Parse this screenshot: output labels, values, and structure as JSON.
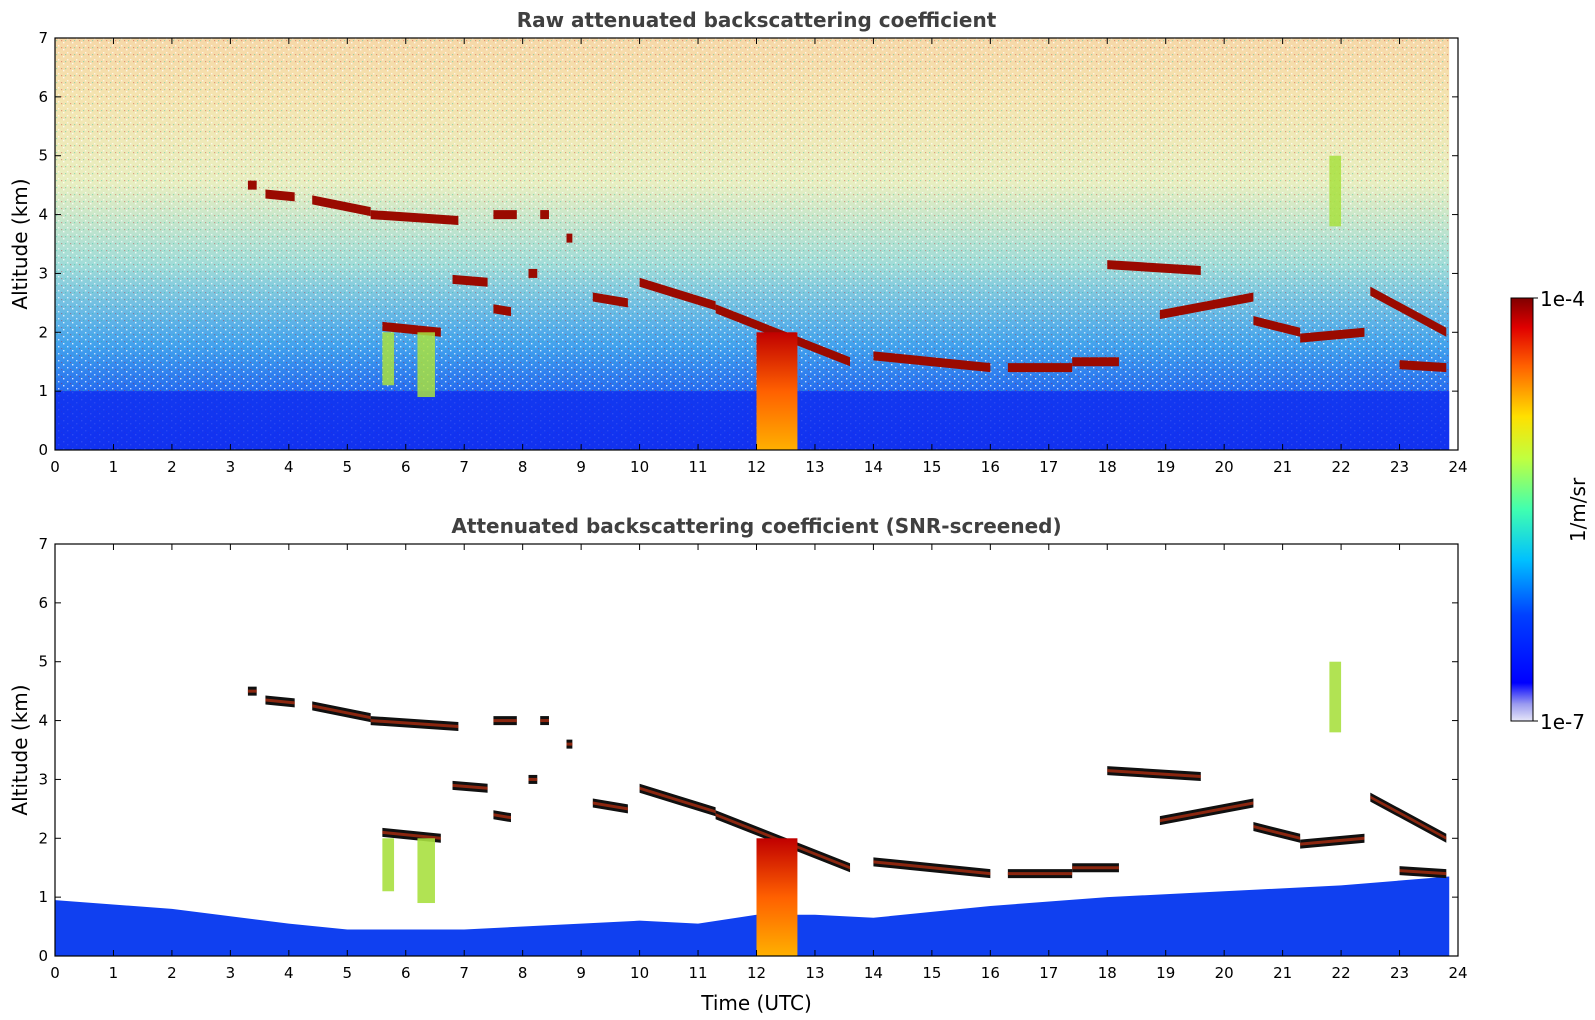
{
  "chart_data": [
    {
      "type": "heatmap",
      "title": "Raw attenuated backscattering coefficient",
      "xlabel": "",
      "ylabel": "Altitude (km)",
      "xlim": [
        0,
        24
      ],
      "ylim": [
        0,
        7
      ],
      "xticks": [
        "0",
        "1",
        "2",
        "3",
        "4",
        "5",
        "6",
        "7",
        "8",
        "9",
        "10",
        "11",
        "12",
        "13",
        "14",
        "15",
        "16",
        "17",
        "18",
        "19",
        "20",
        "21",
        "22",
        "23",
        "24"
      ],
      "yticks": [
        "0",
        "1",
        "2",
        "3",
        "4",
        "5",
        "6",
        "7"
      ],
      "data_end_hour": 23.85,
      "grid": false,
      "layers": [
        {
          "kind": "boundary-layer",
          "x": [
            0,
            23.85
          ],
          "y_top_km": 1.0
        },
        {
          "kind": "cloud",
          "x": [
            3.3,
            3.45
          ],
          "y": [
            4.5,
            4.5
          ]
        },
        {
          "kind": "cloud",
          "x": [
            3.6,
            4.1
          ],
          "y": [
            4.35,
            4.3
          ]
        },
        {
          "kind": "cloud",
          "x": [
            4.4,
            5.4
          ],
          "y": [
            4.25,
            4.05
          ]
        },
        {
          "kind": "cloud",
          "x": [
            5.4,
            6.9
          ],
          "y": [
            4.0,
            3.9
          ]
        },
        {
          "kind": "cloud",
          "x": [
            7.5,
            7.9
          ],
          "y": [
            4.0,
            4.0
          ]
        },
        {
          "kind": "cloud",
          "x": [
            8.3,
            8.45
          ],
          "y": [
            4.0,
            4.0
          ]
        },
        {
          "kind": "cloud",
          "x": [
            5.6,
            6.6
          ],
          "y": [
            2.1,
            2.0
          ]
        },
        {
          "kind": "cloud",
          "x": [
            6.8,
            7.4
          ],
          "y": [
            2.9,
            2.85
          ]
        },
        {
          "kind": "cloud",
          "x": [
            7.5,
            7.8
          ],
          "y": [
            2.4,
            2.35
          ]
        },
        {
          "kind": "cloud",
          "x": [
            8.1,
            8.25
          ],
          "y": [
            3.0,
            3.0
          ]
        },
        {
          "kind": "cloud",
          "x": [
            8.75,
            8.85
          ],
          "y": [
            3.6,
            3.6
          ]
        },
        {
          "kind": "cloud",
          "x": [
            9.2,
            9.8
          ],
          "y": [
            2.6,
            2.5
          ]
        },
        {
          "kind": "cloud",
          "x": [
            10.0,
            11.3
          ],
          "y": [
            2.85,
            2.45
          ]
        },
        {
          "kind": "cloud",
          "x": [
            11.3,
            13.6
          ],
          "y": [
            2.4,
            1.5
          ]
        },
        {
          "kind": "cloud",
          "x": [
            14.0,
            16.0
          ],
          "y": [
            1.6,
            1.4
          ]
        },
        {
          "kind": "cloud",
          "x": [
            16.3,
            17.4
          ],
          "y": [
            1.4,
            1.4
          ]
        },
        {
          "kind": "cloud",
          "x": [
            17.4,
            18.2
          ],
          "y": [
            1.5,
            1.5
          ]
        },
        {
          "kind": "cloud",
          "x": [
            18.0,
            19.6
          ],
          "y": [
            3.15,
            3.05
          ]
        },
        {
          "kind": "cloud",
          "x": [
            18.9,
            20.5
          ],
          "y": [
            2.3,
            2.6
          ]
        },
        {
          "kind": "cloud",
          "x": [
            20.5,
            21.3
          ],
          "y": [
            2.2,
            2.0
          ]
        },
        {
          "kind": "cloud",
          "x": [
            21.3,
            22.4
          ],
          "y": [
            1.9,
            2.0
          ]
        },
        {
          "kind": "cloud",
          "x": [
            22.5,
            23.8
          ],
          "y": [
            2.7,
            2.0
          ]
        },
        {
          "kind": "cloud",
          "x": [
            23.0,
            23.8
          ],
          "y": [
            1.45,
            1.4
          ]
        },
        {
          "kind": "precip",
          "x": [
            12.0,
            12.7
          ],
          "y": [
            0,
            2.0
          ]
        },
        {
          "kind": "virga",
          "x": [
            5.6,
            5.8
          ],
          "y": [
            1.1,
            2.0
          ]
        },
        {
          "kind": "virga",
          "x": [
            6.2,
            6.5
          ],
          "y": [
            0.9,
            2.0
          ]
        },
        {
          "kind": "virga",
          "x": [
            21.8,
            22.0
          ],
          "y": [
            3.8,
            5.0
          ]
        }
      ]
    },
    {
      "type": "heatmap",
      "title": "Attenuated backscattering coefficient (SNR-screened)",
      "xlabel": "Time (UTC)",
      "ylabel": "Altitude (km)",
      "xlim": [
        0,
        24
      ],
      "ylim": [
        0,
        7
      ],
      "xticks": [
        "0",
        "1",
        "2",
        "3",
        "4",
        "5",
        "6",
        "7",
        "8",
        "9",
        "10",
        "11",
        "12",
        "13",
        "14",
        "15",
        "16",
        "17",
        "18",
        "19",
        "20",
        "21",
        "22",
        "23",
        "24"
      ],
      "yticks": [
        "0",
        "1",
        "2",
        "3",
        "4",
        "5",
        "6",
        "7"
      ],
      "data_end_hour": 23.85,
      "grid": false,
      "boundary_layer_top_km": {
        "x": [
          0,
          2,
          4,
          5,
          7,
          9,
          10,
          11,
          12,
          13,
          14,
          16,
          18,
          20,
          22,
          23.85
        ],
        "y": [
          0.95,
          0.8,
          0.55,
          0.45,
          0.45,
          0.55,
          0.6,
          0.55,
          0.7,
          0.7,
          0.65,
          0.85,
          1.0,
          1.1,
          1.2,
          1.35
        ]
      }
    }
  ],
  "colorbar": {
    "label": "1/m/sr",
    "min_label": "1e-7",
    "max_label": "1e-4",
    "scale": "log",
    "range": [
      1e-07,
      0.0001
    ]
  }
}
